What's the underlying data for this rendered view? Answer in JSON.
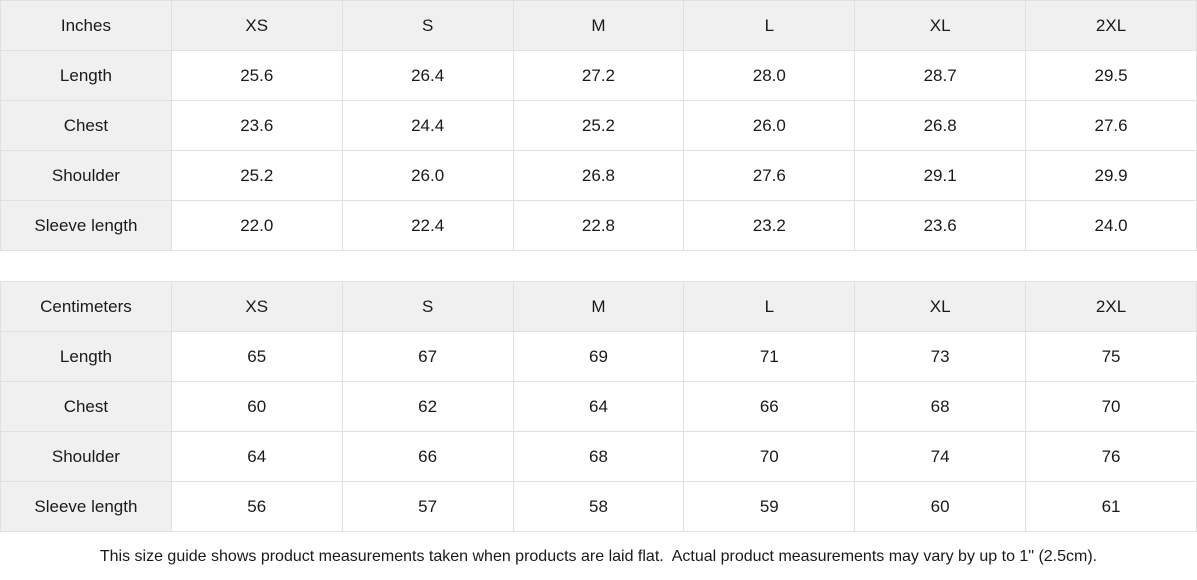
{
  "colors": {
    "header_background": "#f0f0f0",
    "cell_border": "#e0e0e0",
    "text": "#1a1a1a",
    "background": "#ffffff"
  },
  "chart_data": [
    {
      "type": "table",
      "unit": "Inches",
      "sizes": [
        "XS",
        "S",
        "M",
        "L",
        "XL",
        "2XL"
      ],
      "rows": [
        {
          "label": "Length",
          "values": [
            "25.6",
            "26.4",
            "27.2",
            "28.0",
            "28.7",
            "29.5"
          ]
        },
        {
          "label": "Chest",
          "values": [
            "23.6",
            "24.4",
            "25.2",
            "26.0",
            "26.8",
            "27.6"
          ]
        },
        {
          "label": "Shoulder",
          "values": [
            "25.2",
            "26.0",
            "26.8",
            "27.6",
            "29.1",
            "29.9"
          ]
        },
        {
          "label": "Sleeve length",
          "values": [
            "22.0",
            "22.4",
            "22.8",
            "23.2",
            "23.6",
            "24.0"
          ]
        }
      ]
    },
    {
      "type": "table",
      "unit": "Centimeters",
      "sizes": [
        "XS",
        "S",
        "M",
        "L",
        "XL",
        "2XL"
      ],
      "rows": [
        {
          "label": "Length",
          "values": [
            "65",
            "67",
            "69",
            "71",
            "73",
            "75"
          ]
        },
        {
          "label": "Chest",
          "values": [
            "60",
            "62",
            "64",
            "66",
            "68",
            "70"
          ]
        },
        {
          "label": "Shoulder",
          "values": [
            "64",
            "66",
            "68",
            "70",
            "74",
            "76"
          ]
        },
        {
          "label": "Sleeve length",
          "values": [
            "56",
            "57",
            "58",
            "59",
            "60",
            "61"
          ]
        }
      ]
    }
  ],
  "footer": {
    "note": "This size guide shows product measurements taken when products are laid flat.  Actual product measurements may vary by up to 1\" (2.5cm)."
  }
}
